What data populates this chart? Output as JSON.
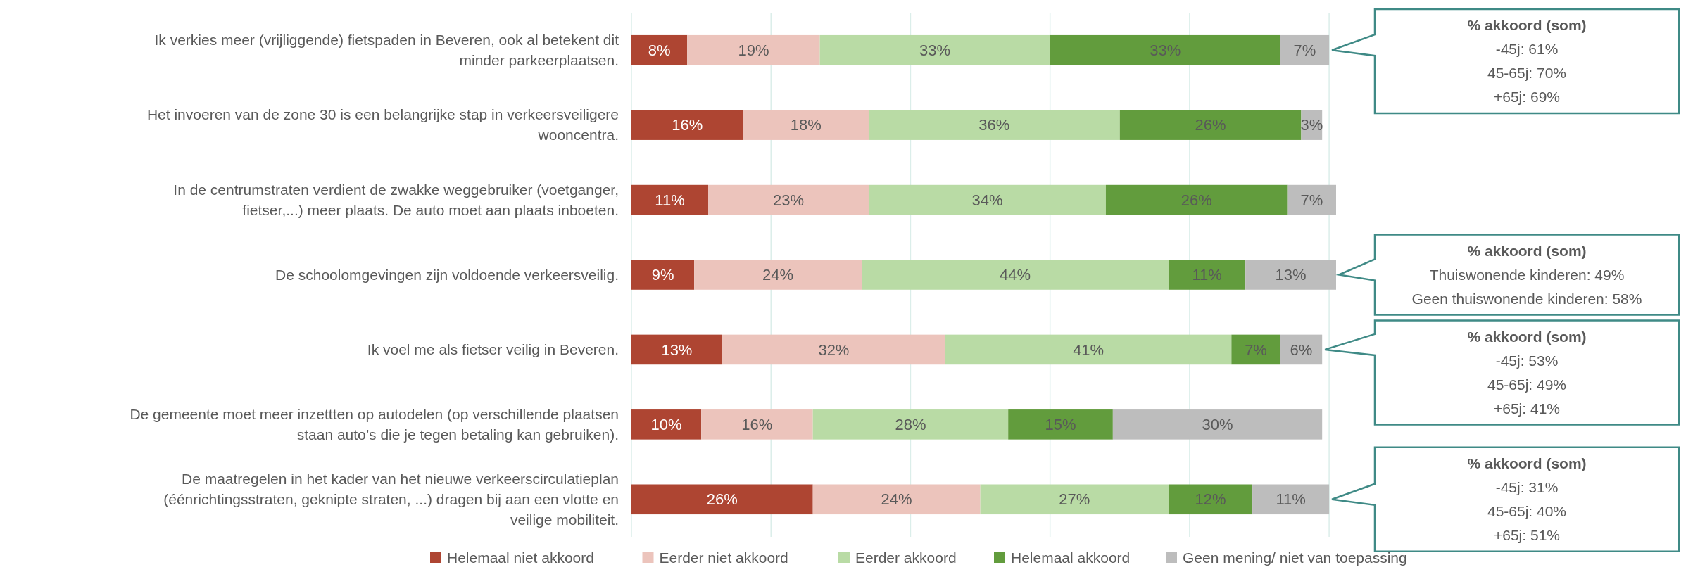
{
  "chart_data": {
    "type": "bar",
    "orientation": "horizontal",
    "stacked": true,
    "categories": [
      "Ik verkies meer (vrijliggende) fietspaden in Beveren, ook al betekent dit minder parkeerplaatsen.",
      "Het invoeren van de zone 30 is een belangrijke stap in verkeersveiligere wooncentra.",
      "In de centrumstraten verdient de zwakke weggebruiker (voetganger, fietser,...) meer plaats. De auto moet aan plaats inboeten.",
      "De schoolomgevingen zijn voldoende verkeersveilig.",
      "Ik voel me als fietser veilig in Beveren.",
      "De gemeente moet meer inzettten op autodelen (op verschillende plaatsen staan auto’s die je tegen betaling kan gebruiken).",
      "De maatregelen in het kader van het nieuwe verkeerscirculatieplan (éénrichtingsstraten, geknipte straten, ...) dragen bij aan een vlotte en veilige mobiliteit."
    ],
    "series": [
      {
        "name": "Helemaal niet akkoord",
        "color": "#ae4532",
        "values": [
          8,
          16,
          11,
          9,
          13,
          10,
          26
        ],
        "value_labels": [
          "8%",
          "16%",
          "11%",
          "9%",
          "13%",
          "10%",
          "26%"
        ]
      },
      {
        "name": "Eerder niet akkoord",
        "color": "#ecc4bc",
        "values": [
          19,
          18,
          23,
          24,
          32,
          16,
          24
        ],
        "value_labels": [
          "19%",
          "18%",
          "23%",
          "24%",
          "32%",
          "16%",
          "24%"
        ]
      },
      {
        "name": "Eerder akkoord",
        "color": "#b9dba5",
        "values": [
          33,
          36,
          34,
          44,
          41,
          28,
          27
        ],
        "value_labels": [
          "33%",
          "36%",
          "34%",
          "44%",
          "41%",
          "28%",
          "27%"
        ]
      },
      {
        "name": "Helemaal akkoord",
        "color": "#629c3d",
        "values": [
          33,
          26,
          26,
          11,
          7,
          15,
          12
        ],
        "value_labels": [
          "33%",
          "26%",
          "26%",
          "11%",
          "7%",
          "15%",
          "12%"
        ]
      },
      {
        "name": "Geen mening/ niet van toepassing",
        "color": "#bdbdbd",
        "values": [
          7,
          3,
          7,
          13,
          6,
          30,
          11
        ],
        "value_labels": [
          "7%",
          "3%",
          "7%",
          "13%",
          "6%",
          "30%",
          "11%"
        ]
      }
    ],
    "xlim": [
      0,
      101
    ],
    "xticks": [
      {
        "value": 0,
        "label": null
      },
      {
        "value": 20,
        "label": null
      },
      {
        "value": 40,
        "label": null
      },
      {
        "value": 60,
        "label": null
      },
      {
        "value": 80,
        "label": null
      },
      {
        "value": 100,
        "label": null
      }
    ],
    "tick_labels": "y",
    "grid": "x",
    "legend": "bottom",
    "annotations": [
      "% akkoord (som)\n-45j: 61%\n45-65j: 70%\n+65j: 69%",
      "% akkoord (som)\nThuiswonende kinderen: 49%\nGeen thuiswonende kinderen: 58%",
      "% akkoord (som)\n-45j: 53%\n45-65j: 49%\n+65j: 41%",
      "% akkoord (som)\n-45j: 31%\n45-65j: 40%\n+65j: 51%"
    ]
  }
}
